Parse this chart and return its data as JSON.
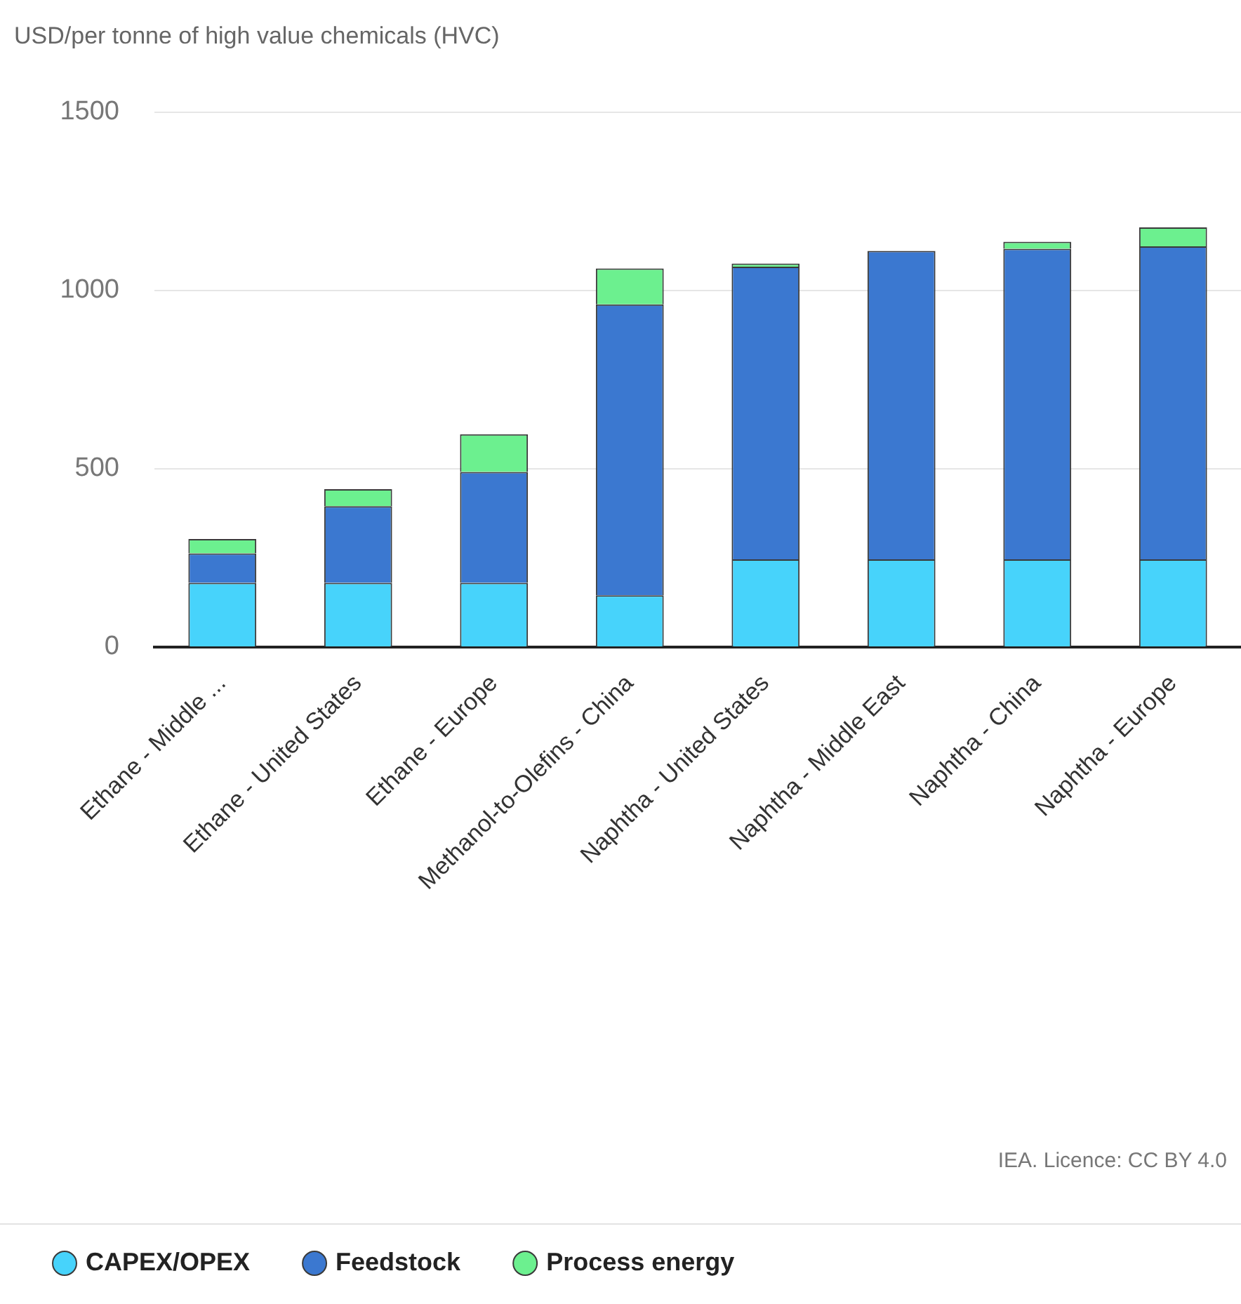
{
  "chart_data": {
    "type": "bar",
    "stacked": true,
    "ylabel": "USD/per tonne of high value chemicals (HVC)",
    "categories": [
      "Ethane - Middle ...",
      "Ethane - United States",
      "Ethane - Europe",
      "Methanol-to-Olefins - China",
      "Naphtha - United States",
      "Naphtha - Middle East",
      "Naphtha - China",
      "Naphtha - Europe"
    ],
    "series": [
      {
        "name": "CAPEX/OPEX",
        "color": "#47d3fb",
        "values": [
          180,
          180,
          180,
          145,
          246,
          246,
          246,
          246
        ]
      },
      {
        "name": "Feedstock",
        "color": "#3b78d0",
        "values": [
          83,
          215,
          311,
          816,
          821,
          865,
          871,
          878
        ]
      },
      {
        "name": "Process energy",
        "color": "#6cf08f",
        "values": [
          40,
          48,
          106,
          101,
          9,
          0,
          20,
          53
        ]
      }
    ],
    "ylim": [
      0,
      1500
    ],
    "yticks": [
      0,
      500,
      1000,
      1500
    ],
    "grid": "y",
    "legend": "bottom",
    "annotations": [
      "IEA. Licence: CC BY 4.0"
    ]
  }
}
